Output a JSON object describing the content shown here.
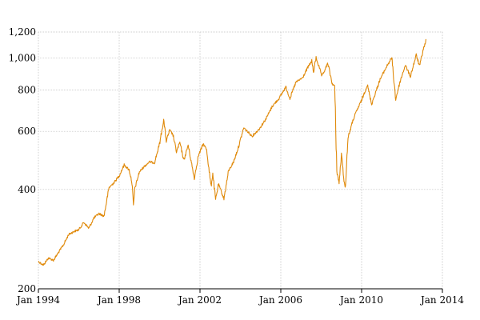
{
  "chart_data": {
    "type": "line",
    "title": "",
    "xlabel": "",
    "ylabel": "",
    "y_scale": "log",
    "xlim": [
      "1994-01-01",
      "2014-01-01"
    ],
    "ylim": [
      200,
      1200
    ],
    "grid": true,
    "x_ticks": [
      {
        "date": "1994-01-01",
        "label": "Jan 1994"
      },
      {
        "date": "1998-01-01",
        "label": "Jan 1998"
      },
      {
        "date": "2002-01-01",
        "label": "Jan 2002"
      },
      {
        "date": "2006-01-01",
        "label": "Jan 2006"
      },
      {
        "date": "2010-01-01",
        "label": "Jan 2010"
      },
      {
        "date": "2014-01-01",
        "label": "Jan 2014"
      }
    ],
    "y_ticks": [
      {
        "value": 200,
        "label": "200"
      },
      {
        "value": 400,
        "label": "400"
      },
      {
        "value": 600,
        "label": "600"
      },
      {
        "value": 800,
        "label": "800"
      },
      {
        "value": 1000,
        "label": "1,000"
      },
      {
        "value": 1200,
        "label": "1,200"
      }
    ],
    "series": [
      {
        "color": "#e08a0b",
        "points": [
          [
            "1994-01-01",
            242
          ],
          [
            "1994-04-01",
            236
          ],
          [
            "1994-07-01",
            248
          ],
          [
            "1994-10-01",
            244
          ],
          [
            "1995-01-01",
            258
          ],
          [
            "1995-04-01",
            272
          ],
          [
            "1995-07-01",
            292
          ],
          [
            "1995-10-01",
            298
          ],
          [
            "1996-01-01",
            302
          ],
          [
            "1996-04-01",
            318
          ],
          [
            "1996-07-01",
            305
          ],
          [
            "1996-10-01",
            328
          ],
          [
            "1997-01-01",
            338
          ],
          [
            "1997-04-01",
            332
          ],
          [
            "1997-07-01",
            405
          ],
          [
            "1997-10-01",
            420
          ],
          [
            "1998-01-01",
            440
          ],
          [
            "1998-04-01",
            475
          ],
          [
            "1998-07-01",
            458
          ],
          [
            "1998-08-20",
            420
          ],
          [
            "1998-09-15",
            355
          ],
          [
            "1998-10-10",
            402
          ],
          [
            "1999-01-01",
            452
          ],
          [
            "1999-04-01",
            470
          ],
          [
            "1999-07-01",
            485
          ],
          [
            "1999-10-01",
            482
          ],
          [
            "2000-01-01",
            550
          ],
          [
            "2000-03-15",
            650
          ],
          [
            "2000-05-01",
            560
          ],
          [
            "2000-07-01",
            605
          ],
          [
            "2000-09-01",
            585
          ],
          [
            "2000-11-01",
            520
          ],
          [
            "2001-01-01",
            555
          ],
          [
            "2001-03-15",
            490
          ],
          [
            "2001-06-01",
            545
          ],
          [
            "2001-09-20",
            432
          ],
          [
            "2001-12-01",
            505
          ],
          [
            "2002-03-01",
            550
          ],
          [
            "2002-05-01",
            528
          ],
          [
            "2002-07-20",
            408
          ],
          [
            "2002-08-20",
            448
          ],
          [
            "2002-10-10",
            372
          ],
          [
            "2002-12-01",
            415
          ],
          [
            "2003-03-10",
            375
          ],
          [
            "2003-06-01",
            455
          ],
          [
            "2003-09-01",
            485
          ],
          [
            "2003-12-01",
            540
          ],
          [
            "2004-03-01",
            615
          ],
          [
            "2004-08-01",
            580
          ],
          [
            "2004-12-01",
            608
          ],
          [
            "2005-04-01",
            652
          ],
          [
            "2005-08-01",
            715
          ],
          [
            "2005-12-01",
            755
          ],
          [
            "2006-04-01",
            818
          ],
          [
            "2006-06-15",
            755
          ],
          [
            "2006-10-01",
            845
          ],
          [
            "2007-02-01",
            872
          ],
          [
            "2007-05-01",
            935
          ],
          [
            "2007-07-15",
            980
          ],
          [
            "2007-08-15",
            905
          ],
          [
            "2007-10-01",
            1005
          ],
          [
            "2008-01-15",
            880
          ],
          [
            "2008-05-01",
            965
          ],
          [
            "2008-07-15",
            840
          ],
          [
            "2008-09-01",
            820
          ],
          [
            "2008-10-10",
            455
          ],
          [
            "2008-11-20",
            418
          ],
          [
            "2009-01-01",
            510
          ],
          [
            "2009-03-09",
            398
          ],
          [
            "2009-05-01",
            575
          ],
          [
            "2009-08-01",
            650
          ],
          [
            "2009-10-01",
            690
          ],
          [
            "2010-01-01",
            745
          ],
          [
            "2010-04-15",
            830
          ],
          [
            "2010-07-01",
            725
          ],
          [
            "2010-09-01",
            778
          ],
          [
            "2010-12-01",
            862
          ],
          [
            "2011-04-01",
            945
          ],
          [
            "2011-07-01",
            1002
          ],
          [
            "2011-09-10",
            748
          ],
          [
            "2011-10-05",
            782
          ],
          [
            "2011-12-01",
            852
          ],
          [
            "2012-03-01",
            952
          ],
          [
            "2012-06-01",
            880
          ],
          [
            "2012-09-15",
            1022
          ],
          [
            "2012-11-15",
            945
          ],
          [
            "2013-01-15",
            1055
          ],
          [
            "2013-03-15",
            1138
          ]
        ]
      }
    ]
  }
}
